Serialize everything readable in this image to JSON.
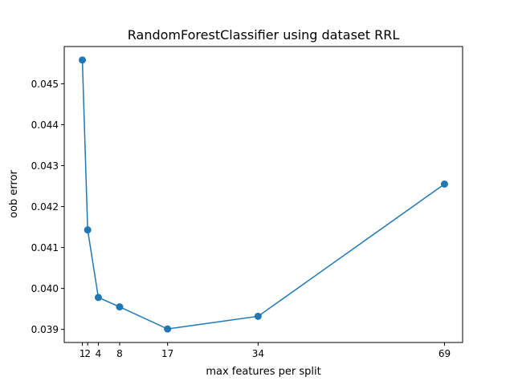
{
  "chart_data": {
    "type": "line",
    "title": "RandomForestClassifier using dataset RRL",
    "xlabel": "max features per split",
    "ylabel": "oob error",
    "x": [
      1,
      2,
      4,
      8,
      17,
      34,
      69
    ],
    "series": [
      {
        "values": [
          0.04558,
          0.04143,
          0.03978,
          0.03955,
          0.03901,
          0.03932,
          0.04255
        ]
      }
    ],
    "xticks": [
      1,
      2,
      4,
      8,
      17,
      34,
      69
    ],
    "xtick_labels": [
      "1",
      "2",
      "4",
      "8",
      "17",
      "34",
      "69"
    ],
    "yticks": [
      0.039,
      0.04,
      0.041,
      0.042,
      0.043,
      0.044,
      0.045
    ],
    "ytick_labels": [
      "0.039",
      "0.040",
      "0.041",
      "0.042",
      "0.043",
      "0.044",
      "0.045"
    ],
    "xlim": [
      -2.4,
      72.4
    ],
    "ylim": [
      0.03868,
      0.04591
    ],
    "grid": false,
    "color": "#1f77b4"
  }
}
